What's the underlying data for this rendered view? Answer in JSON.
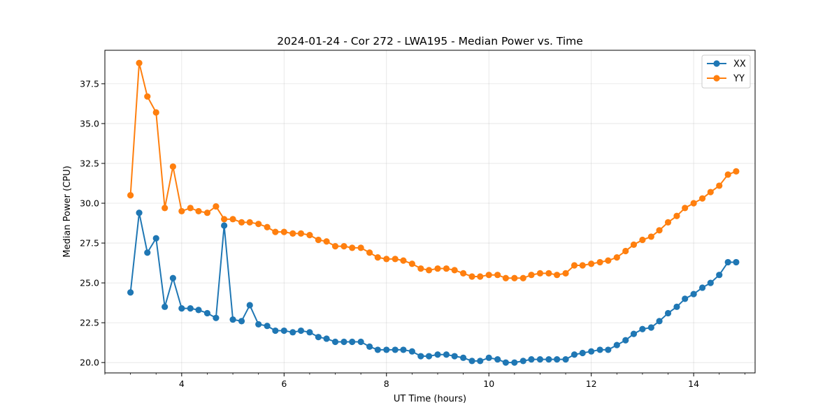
{
  "chart_data": {
    "type": "line",
    "title": "2024-01-24 - Cor 272 - LWA195 - Median Power vs. Time",
    "xlabel": "UT Time (hours)",
    "ylabel": "Median Power (CPU)",
    "xlim": [
      2.5,
      15.2
    ],
    "ylim": [
      19.35,
      39.6
    ],
    "xticks": [
      4,
      6,
      8,
      10,
      12,
      14
    ],
    "xtick_labels": [
      "4",
      "6",
      "8",
      "10",
      "12",
      "14"
    ],
    "yticks": [
      20.0,
      22.5,
      25.0,
      27.5,
      30.0,
      32.5,
      35.0,
      37.5
    ],
    "ytick_labels": [
      "20.0",
      "22.5",
      "25.0",
      "27.5",
      "30.0",
      "32.5",
      "35.0",
      "37.5"
    ],
    "grid": true,
    "legend_position": "top-right",
    "x": [
      3.0,
      3.17,
      3.33,
      3.5,
      3.67,
      3.83,
      4.0,
      4.17,
      4.33,
      4.5,
      4.67,
      4.83,
      5.0,
      5.17,
      5.33,
      5.5,
      5.67,
      5.83,
      6.0,
      6.17,
      6.33,
      6.5,
      6.67,
      6.83,
      7.0,
      7.17,
      7.33,
      7.5,
      7.67,
      7.83,
      8.0,
      8.17,
      8.33,
      8.5,
      8.67,
      8.83,
      9.0,
      9.17,
      9.33,
      9.5,
      9.67,
      9.83,
      10.0,
      10.17,
      10.33,
      10.5,
      10.67,
      10.83,
      11.0,
      11.17,
      11.33,
      11.5,
      11.67,
      11.83,
      12.0,
      12.17,
      12.33,
      12.5,
      12.67,
      12.83,
      13.0,
      13.17,
      13.33,
      13.5,
      13.67,
      13.83,
      14.0,
      14.17,
      14.33,
      14.5,
      14.67,
      14.83
    ],
    "series": [
      {
        "name": "XX",
        "color": "#1f77b4",
        "values": [
          24.4,
          29.4,
          26.9,
          27.8,
          23.5,
          25.3,
          23.4,
          23.4,
          23.3,
          23.1,
          22.8,
          28.6,
          22.7,
          22.6,
          23.6,
          22.4,
          22.3,
          22.0,
          22.0,
          21.9,
          22.0,
          21.9,
          21.6,
          21.5,
          21.3,
          21.3,
          21.3,
          21.3,
          21.0,
          20.8,
          20.8,
          20.8,
          20.8,
          20.7,
          20.4,
          20.4,
          20.5,
          20.5,
          20.4,
          20.3,
          20.1,
          20.1,
          20.3,
          20.2,
          20.0,
          20.0,
          20.1,
          20.2,
          20.2,
          20.2,
          20.2,
          20.2,
          20.5,
          20.6,
          20.7,
          20.8,
          20.8,
          21.1,
          21.4,
          21.8,
          22.1,
          22.2,
          22.6,
          23.1,
          23.5,
          24.0,
          24.3,
          24.7,
          25.0,
          25.5,
          26.3,
          26.3
        ]
      },
      {
        "name": "YY",
        "color": "#ff7f0e",
        "values": [
          30.5,
          38.8,
          36.7,
          35.7,
          29.7,
          32.3,
          29.5,
          29.7,
          29.5,
          29.4,
          29.8,
          29.0,
          29.0,
          28.8,
          28.8,
          28.7,
          28.5,
          28.2,
          28.2,
          28.1,
          28.1,
          28.0,
          27.7,
          27.6,
          27.3,
          27.3,
          27.2,
          27.2,
          26.9,
          26.6,
          26.5,
          26.5,
          26.4,
          26.2,
          25.9,
          25.8,
          25.9,
          25.9,
          25.8,
          25.6,
          25.4,
          25.4,
          25.5,
          25.5,
          25.3,
          25.3,
          25.3,
          25.5,
          25.6,
          25.6,
          25.5,
          25.6,
          26.1,
          26.1,
          26.2,
          26.3,
          26.4,
          26.6,
          27.0,
          27.4,
          27.7,
          27.9,
          28.3,
          28.8,
          29.2,
          29.7,
          30.0,
          30.3,
          30.7,
          31.1,
          31.8,
          32.0
        ]
      }
    ]
  }
}
